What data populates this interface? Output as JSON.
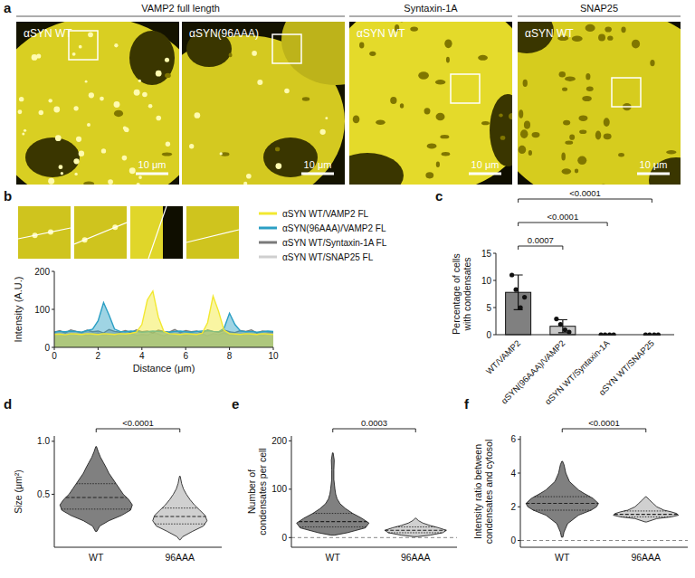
{
  "panel_labels": [
    "a",
    "b",
    "c",
    "d",
    "e",
    "f"
  ],
  "micrographs": {
    "headers": [
      "VAMP2 full length",
      "Syntaxin-1A",
      "SNAP25"
    ],
    "images": [
      {
        "label": "αSYN WT",
        "scale_bar": "10 μm"
      },
      {
        "label": "αSYN(96AAA)",
        "scale_bar": "10 μm"
      },
      {
        "label": "αSYN WT",
        "scale_bar": "10 μm"
      },
      {
        "label": "αSYN WT",
        "scale_bar": "10 μm"
      }
    ]
  },
  "chart_data": [
    {
      "type": "area",
      "x_label": "Distance (μm)",
      "y_label": "Intensity (A.U.)",
      "x": [
        0,
        0.25,
        0.5,
        0.75,
        1,
        1.25,
        1.5,
        1.75,
        2,
        2.25,
        2.5,
        2.75,
        3,
        3.25,
        3.5,
        3.75,
        4,
        4.25,
        4.5,
        4.75,
        5,
        5.25,
        5.5,
        5.75,
        6,
        6.25,
        6.5,
        6.75,
        7,
        7.25,
        7.5,
        7.75,
        8,
        8.25,
        8.5,
        8.75,
        9,
        9.25,
        9.5,
        9.75,
        10
      ],
      "xlim": [
        0,
        10
      ],
      "xticks": [
        0,
        2,
        4,
        6,
        8,
        10
      ],
      "ylim": [
        0,
        200
      ],
      "yticks": [
        0,
        100,
        200
      ],
      "legend": "top-right",
      "series": [
        {
          "name": "αSYN WT/VAMP2 FL",
          "color": "#f2e830",
          "values": [
            34,
            35,
            33,
            36,
            35,
            34,
            36,
            35,
            34,
            36,
            35,
            34,
            36,
            35,
            37,
            40,
            60,
            125,
            148,
            80,
            42,
            36,
            35,
            34,
            36,
            35,
            34,
            37,
            65,
            135,
            95,
            45,
            36,
            35,
            34,
            36,
            35,
            34,
            36,
            35,
            34
          ]
        },
        {
          "name": "αSYN(96AAA)/VAMP2 FL",
          "color": "#2b9fc4",
          "values": [
            40,
            42,
            41,
            43,
            42,
            40,
            44,
            48,
            70,
            118,
            85,
            48,
            42,
            41,
            43,
            42,
            40,
            41,
            43,
            42,
            41,
            40,
            42,
            43,
            41,
            40,
            42,
            43,
            44,
            42,
            41,
            50,
            90,
            60,
            43,
            41,
            42,
            40,
            41,
            43,
            42
          ]
        },
        {
          "name": "αSYN WT/Syntaxin-1A FL",
          "color": "#7a7a7a",
          "values": [
            40,
            44,
            38,
            46,
            42,
            39,
            45,
            41,
            43,
            38,
            47,
            42,
            40,
            44,
            39,
            46,
            41,
            43,
            38,
            45,
            42,
            40,
            47,
            39,
            44,
            41,
            43,
            38,
            46,
            42,
            40,
            45,
            41,
            39,
            44,
            42,
            46,
            38,
            43,
            41,
            40
          ]
        },
        {
          "name": "αSYN WT/SNAP25 FL",
          "color": "#cfcfcf",
          "values": [
            32,
            35,
            30,
            37,
            33,
            36,
            31,
            34,
            38,
            32,
            35,
            30,
            36,
            33,
            37,
            31,
            34,
            32,
            38,
            35,
            30,
            36,
            33,
            34,
            31,
            37,
            32,
            35,
            30,
            36,
            33,
            38,
            32,
            34,
            31,
            36,
            33,
            35,
            30,
            37,
            34
          ]
        }
      ]
    },
    {
      "type": "bar",
      "y_label": "Percentage of cells\nwith condensates",
      "categories": [
        "WT/VAMP2",
        "αSYN(96AAA)/VAMP2",
        "αSYN WT/Syntaxin-1A",
        "αSYN WT/SNAP25"
      ],
      "values": [
        7.8,
        1.55,
        0,
        0
      ],
      "errors": [
        3.2,
        1.2,
        0,
        0
      ],
      "points": [
        [
          11.0,
          8.3,
          5.0,
          6.9
        ],
        [
          2.9,
          1.9,
          0.9,
          0.5
        ],
        [
          0,
          0,
          0,
          0
        ],
        [
          0,
          0,
          0,
          0
        ]
      ],
      "colors": [
        "#808080",
        "#c8c8c8",
        "#1a1a1a",
        "#1a1a1a"
      ],
      "ylim": [
        0,
        15
      ],
      "yticks": [
        0,
        5,
        10,
        15
      ],
      "comparisons": [
        {
          "pair": [
            0,
            1
          ],
          "label": "0.0007"
        },
        {
          "pair": [
            0,
            2
          ],
          "label": "<0.0001"
        },
        {
          "pair": [
            0,
            3
          ],
          "label": "<0.0001"
        }
      ]
    },
    {
      "type": "violin",
      "y_label": "Size (μm²)",
      "categories": [
        "WT",
        "96AAA"
      ],
      "ylim": [
        0,
        1.05
      ],
      "yticks": [
        0.5,
        {
          "value": 1,
          "label": "1.0"
        }
      ],
      "comparison": {
        "pair": [
          0,
          1
        ],
        "label": "<0.0001"
      },
      "distributions": [
        {
          "color": "#808080",
          "y": [
            0.15,
            0.2,
            0.25,
            0.3,
            0.35,
            0.4,
            0.45,
            0.5,
            0.55,
            0.6,
            0.65,
            0.7,
            0.75,
            0.8,
            0.85,
            0.9,
            0.95
          ],
          "density": [
            0.02,
            0.1,
            0.35,
            0.7,
            0.95,
            1.0,
            0.9,
            0.75,
            0.65,
            0.55,
            0.45,
            0.35,
            0.28,
            0.2,
            0.12,
            0.06,
            0.01
          ],
          "median": 0.47,
          "q1": 0.36,
          "q3": 0.6
        },
        {
          "color": "#d0d0d0",
          "y": [
            0.07,
            0.1,
            0.15,
            0.2,
            0.25,
            0.3,
            0.35,
            0.4,
            0.45,
            0.5,
            0.55,
            0.6,
            0.67
          ],
          "density": [
            0.01,
            0.08,
            0.35,
            0.65,
            0.75,
            0.7,
            0.55,
            0.4,
            0.28,
            0.18,
            0.1,
            0.05,
            0.01
          ],
          "median": 0.29,
          "q1": 0.22,
          "q3": 0.37
        }
      ]
    },
    {
      "type": "violin",
      "y_label": "Number of\ncondensates per cell",
      "categories": [
        "WT",
        "96AAA"
      ],
      "ylim": [
        -20,
        210
      ],
      "yticks": [
        0,
        100,
        200
      ],
      "reference_line": 0,
      "comparison": {
        "pair": [
          0,
          1
        ],
        "label": "0.0003"
      },
      "distributions": [
        {
          "color": "#808080",
          "y": [
            5,
            10,
            20,
            30,
            40,
            50,
            60,
            70,
            80,
            90,
            100,
            120,
            140,
            160,
            175
          ],
          "density": [
            0.05,
            0.4,
            0.9,
            1.0,
            0.8,
            0.55,
            0.35,
            0.2,
            0.12,
            0.08,
            0.06,
            0.03,
            0.03,
            0.04,
            0.01
          ],
          "median": 33,
          "q1": 22,
          "q3": 50
        },
        {
          "color": "#d0d0d0",
          "y": [
            2,
            5,
            10,
            15,
            20,
            25,
            30,
            35,
            40
          ],
          "density": [
            0.05,
            0.4,
            0.75,
            0.85,
            0.65,
            0.4,
            0.2,
            0.08,
            0.01
          ],
          "median": 15,
          "q1": 10,
          "q3": 22
        }
      ]
    },
    {
      "type": "violin",
      "y_label": "Intensity ratio between\ncondensates and cytosol",
      "categories": [
        "WT",
        "96AAA"
      ],
      "ylim": [
        -0.4,
        6.2
      ],
      "yticks": [
        0,
        2,
        4,
        6
      ],
      "reference_line": 0,
      "comparison": {
        "pair": [
          0,
          1
        ],
        "label": "<0.0001"
      },
      "distributions": [
        {
          "color": "#808080",
          "y": [
            0.2,
            0.5,
            1.0,
            1.5,
            1.8,
            2.0,
            2.2,
            2.5,
            2.8,
            3.0,
            3.5,
            4.0,
            4.5,
            4.7
          ],
          "density": [
            0.02,
            0.05,
            0.15,
            0.45,
            0.8,
            0.95,
            1.0,
            0.85,
            0.6,
            0.45,
            0.2,
            0.1,
            0.05,
            0.01
          ],
          "median": 2.2,
          "q1": 1.8,
          "q3": 2.6
        },
        {
          "color": "#d0d0d0",
          "y": [
            1.1,
            1.3,
            1.4,
            1.5,
            1.6,
            1.7,
            1.8,
            2.0,
            2.2,
            2.4,
            2.6
          ],
          "density": [
            0.02,
            0.3,
            0.7,
            0.9,
            0.85,
            0.7,
            0.5,
            0.3,
            0.2,
            0.1,
            0.01
          ],
          "median": 1.55,
          "q1": 1.4,
          "q3": 1.75
        }
      ]
    }
  ]
}
